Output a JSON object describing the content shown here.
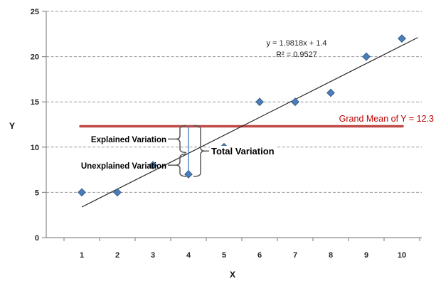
{
  "chart_data": {
    "type": "scatter",
    "x": [
      1,
      2,
      3,
      4,
      5,
      6,
      7,
      8,
      9,
      10
    ],
    "series": [
      {
        "name": "Y",
        "values": [
          5,
          5,
          8,
          7,
          10,
          15,
          15,
          16,
          20,
          22
        ]
      }
    ],
    "trendline": {
      "slope": 1.9818,
      "intercept": 1.4,
      "equation_label": "y = 1.9818x + 1.4",
      "r2_label": "R² = 0.9527"
    },
    "grand_mean": {
      "value": 12.3,
      "x_start": 1,
      "x_end": 10,
      "label": "Grand Mean of Y = 12.3"
    },
    "annotations": {
      "explained": "Explained Variation",
      "unexplained": "Unexplained Variation",
      "total": "Total Variation",
      "anchor_x": 4,
      "anchor_y": 7
    },
    "axes": {
      "xlabel": "X",
      "ylabel": "Y",
      "xticks": [
        1,
        2,
        3,
        4,
        5,
        6,
        7,
        8,
        9,
        10
      ],
      "yticks": [
        0,
        5,
        10,
        15,
        20,
        25
      ],
      "xlim": [
        0,
        10.5
      ],
      "ylim": [
        0,
        25
      ]
    },
    "grid": "horizontal-dashed",
    "legend": false,
    "colors": {
      "marker_fill": "#4A7EBB",
      "marker_edge": "#385D8A",
      "trendline": "#262626",
      "grand_mean_line": "#BE4B48",
      "grand_mean_text": "#C00000",
      "gridline": "#9a9a9a",
      "axis": "#8C8C8C",
      "tick_label": "#262626",
      "annotation": "#595959",
      "vertical_line": "#4F81BD"
    }
  }
}
